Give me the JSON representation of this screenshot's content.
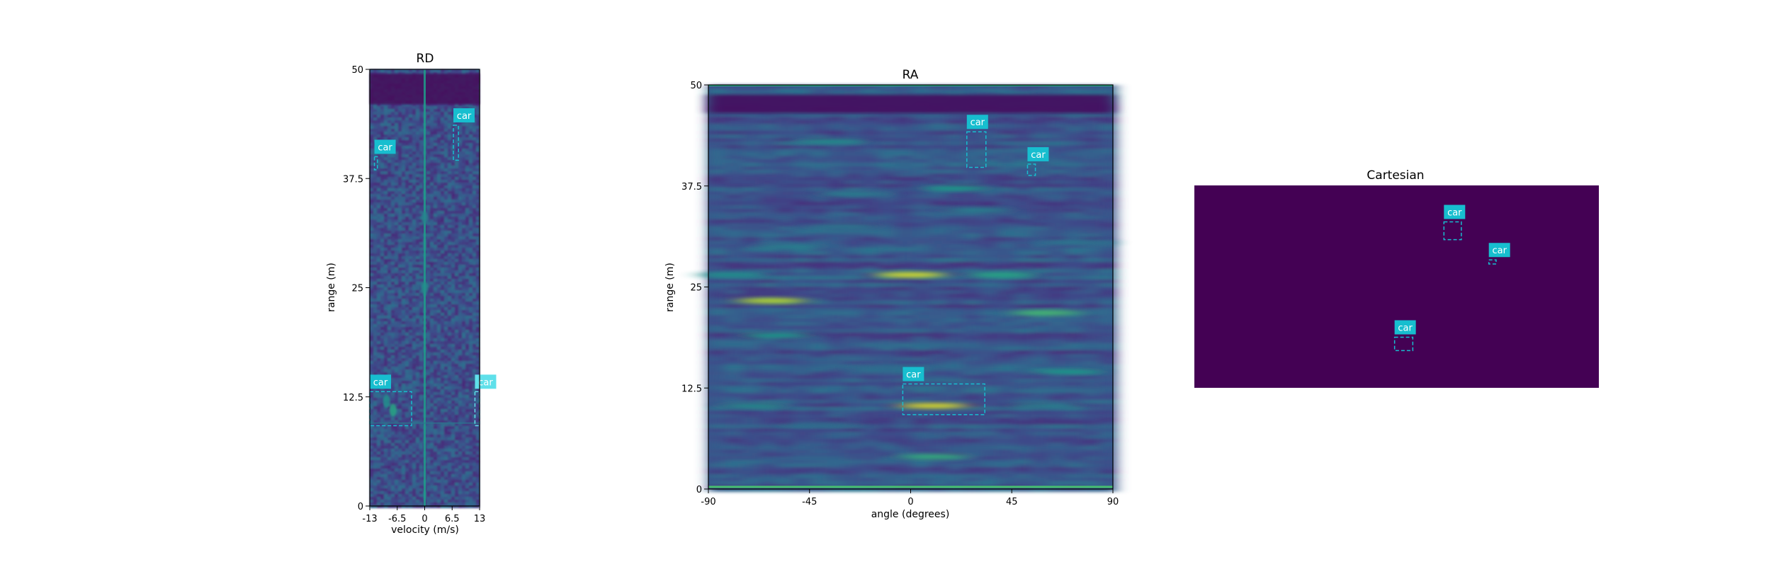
{
  "chart_data": [
    {
      "type": "heatmap",
      "title": "RD",
      "xlabel": "velocity (m/s)",
      "ylabel": "range (m)",
      "xlim": [
        -13,
        13
      ],
      "ylim": [
        0,
        50
      ],
      "xticks": [
        -13,
        -6.5,
        0,
        6.5,
        13
      ],
      "xtick_labels": [
        "-13",
        "-6.5",
        "0",
        "6.5",
        "13"
      ],
      "yticks": [
        0,
        12.5,
        25,
        37.5,
        50
      ],
      "ytick_labels": [
        "0",
        "12.5",
        "25",
        "37.5",
        "50"
      ],
      "colormap": "viridis",
      "detections": [
        {
          "label": "car",
          "x0": 6.8,
          "x1": 8.0,
          "y0": 39.6,
          "y1": 43.6,
          "color": "#17becf"
        },
        {
          "label": "car",
          "x0": -11.9,
          "x1": -11.2,
          "y0": 38.5,
          "y1": 40.0,
          "color": "#17becf"
        },
        {
          "label": "car",
          "x0": -13.0,
          "x1": -3.1,
          "y0": 9.2,
          "y1": 13.1,
          "color": "#17becf"
        },
        {
          "label": "car",
          "x0": 11.9,
          "x1": 13.0,
          "y0": 9.2,
          "y1": 13.1,
          "color": "#5fe0ea"
        }
      ],
      "hot_spots": [
        {
          "x": 0,
          "y": 25.0,
          "i": 0.5
        },
        {
          "x": -7.5,
          "y": 11.0,
          "i": 0.6
        },
        {
          "x": -9,
          "y": 12.0,
          "i": 0.5
        },
        {
          "x": 0,
          "y": 33.0,
          "i": 0.45
        }
      ]
    },
    {
      "type": "heatmap",
      "title": "RA",
      "xlabel": "angle (degrees)",
      "ylabel": "range (m)",
      "xlim": [
        -90,
        90
      ],
      "ylim": [
        0,
        50
      ],
      "xticks": [
        -90,
        -45,
        0,
        45,
        90
      ],
      "xtick_labels": [
        "-90",
        "-45",
        "0",
        "45",
        "90"
      ],
      "yticks": [
        0,
        12.5,
        25,
        37.5,
        50
      ],
      "ytick_labels": [
        "0",
        "12.5",
        "25",
        "37.5",
        "50"
      ],
      "colormap": "viridis",
      "detections": [
        {
          "label": "car",
          "x0": 25,
          "x1": 33.5,
          "y0": 39.8,
          "y1": 44.2,
          "color": "#17becf"
        },
        {
          "label": "car",
          "x0": 52,
          "x1": 55.5,
          "y0": 38.8,
          "y1": 40.2,
          "color": "#17becf"
        },
        {
          "label": "car",
          "x0": -3.5,
          "x1": 33,
          "y0": 9.2,
          "y1": 13.0,
          "color": "#17becf"
        }
      ],
      "hot_spots": [
        {
          "x": 0,
          "y": 26.5,
          "i": 0.95
        },
        {
          "x": -62,
          "y": 23.3,
          "i": 0.9
        },
        {
          "x": 10,
          "y": 10.3,
          "i": 0.95
        },
        {
          "x": 10,
          "y": 4.0,
          "i": 0.65
        },
        {
          "x": 60,
          "y": 21.8,
          "i": 0.7
        },
        {
          "x": 20,
          "y": 37.2,
          "i": 0.55
        },
        {
          "x": -35,
          "y": 43.0,
          "i": 0.5
        },
        {
          "x": -60,
          "y": 19.0,
          "i": 0.55
        },
        {
          "x": 70,
          "y": 14.5,
          "i": 0.55
        },
        {
          "x": -55,
          "y": 30.0,
          "i": 0.45
        },
        {
          "x": -25,
          "y": 36.5,
          "i": 0.45
        },
        {
          "x": 40,
          "y": 26.5,
          "i": 0.6
        },
        {
          "x": -80,
          "y": 26.5,
          "i": 0.5
        },
        {
          "x": -30,
          "y": 32.5,
          "i": 0.4
        },
        {
          "x": 30,
          "y": 34.5,
          "i": 0.45
        },
        {
          "x": -70,
          "y": 10.3,
          "i": 0.5
        },
        {
          "x": 60,
          "y": 10.3,
          "i": 0.45
        },
        {
          "x": -40,
          "y": 8.0,
          "i": 0.35
        },
        {
          "x": -10,
          "y": 15.0,
          "i": 0.35
        },
        {
          "x": 75,
          "y": 30.5,
          "i": 0.4
        }
      ]
    },
    {
      "type": "heatmap",
      "title": "Cartesian",
      "colormap": "viridis",
      "xlim": [
        0,
        100
      ],
      "ylim": [
        0,
        50
      ],
      "background": "#440154",
      "detections": [
        {
          "label": "car",
          "x0": 61.7,
          "x1": 66.0,
          "y0": 36.6,
          "y1": 41.0,
          "color": "#17becf"
        },
        {
          "label": "car",
          "x0": 72.8,
          "x1": 74.6,
          "y0": 30.6,
          "y1": 31.6,
          "color": "#17becf"
        },
        {
          "label": "car",
          "x0": 49.5,
          "x1": 54.0,
          "y0": 9.2,
          "y1": 12.5,
          "color": "#17becf"
        }
      ]
    }
  ]
}
